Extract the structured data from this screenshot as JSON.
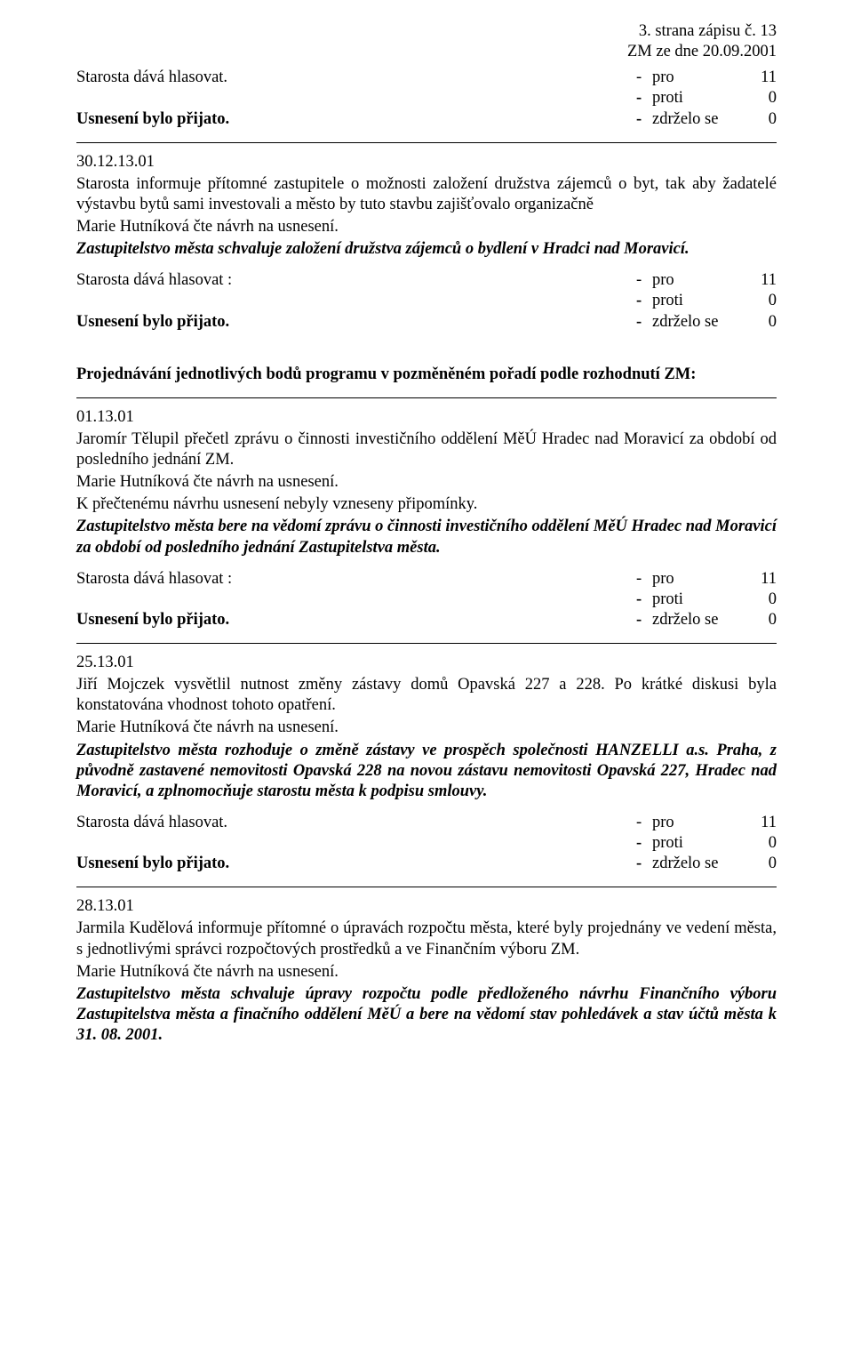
{
  "header": {
    "page_line": "3. strana zápisu č. 13",
    "date_line": "ZM  ze dne 20.09.2001"
  },
  "vote_labels": {
    "pro": "pro",
    "proti": "proti",
    "zdrzelo": "zdrželo se"
  },
  "section1": {
    "left_first": "Starosta dává hlasovat.",
    "pro": "11",
    "proti": "0",
    "zdrzelo": "0",
    "accepted": "Usnesení bylo přijato."
  },
  "section2": {
    "num": "30.12.13.01",
    "body": "Starosta informuje přítomné zastupitele o možnosti založení družstva zájemců o byt, tak aby žadatelé výstavbu bytů sami investovali a město by tuto stavbu zajišťovalo organizačně",
    "read": "Marie Hutníková čte návrh na usnesení.",
    "resolution": "Zastupitelstvo města schvaluje založení družstva zájemců o bydlení v Hradci nad Moravicí.",
    "left_first": "Starosta dává hlasovat :",
    "pro": "11",
    "proti": "0",
    "zdrzelo": "0",
    "accepted": "Usnesení bylo přijato."
  },
  "heading_main": "Projednávání jednotlivých bodů programu v pozměněném pořadí podle rozhodnutí ZM:",
  "section3": {
    "num": "01.13.01",
    "body": "Jaromír Tělupil přečetl zprávu o činnosti investičního oddělení MěÚ Hradec nad Moravicí  za období  od  posledního jednání ZM.",
    "read": "Marie Hutníková čte návrh na usnesení.",
    "noobj": "K přečtenému návrhu usnesení nebyly vzneseny připomínky.",
    "resolution": "Zastupitelstvo města bere na vědomí zprávu o činnosti investičního oddělení MěÚ Hradec nad Moravicí  za  období  od  posledního jednání Zastupitelstva města.",
    "left_first": "Starosta dává hlasovat :",
    "pro": "11",
    "proti": "0",
    "zdrzelo": "0",
    "accepted": "Usnesení bylo přijato."
  },
  "section4": {
    "num": "25.13.01",
    "body": "Jiří Mojczek vysvětlil nutnost změny zástavy domů Opavská 227 a 228. Po krátké diskusi byla konstatována vhodnost tohoto opatření.",
    "read": "Marie Hutníková čte návrh na usnesení.",
    "resolution": "Zastupitelstvo města rozhoduje o  změně zástavy  ve  prospěch společnosti HANZELLI a.s. Praha, z původně zastavené nemovitosti Opavská 228 na novou zástavu nemovitosti Opavská 227, Hradec nad Moravicí, a zplnomocňuje  starostu města k podpisu smlouvy.",
    "left_first": "Starosta dává hlasovat.",
    "pro": "11",
    "proti": "0",
    "zdrzelo": "0",
    "accepted": "Usnesení bylo přijato."
  },
  "section5": {
    "num": "28.13.01",
    "body": "Jarmila Kudělová informuje přítomné o úpravách rozpočtu města, které byly projednány ve vedení města, s jednotlivými správci rozpočtových prostředků a ve Finančním výboru ZM.",
    "read": "Marie  Hutníková čte návrh na usnesení.",
    "resolution": "Zastupitelstvo města schvaluje   úpravy rozpočtu podle předloženého návrhu Finančního  výboru Zastupitelstva města a finačního oddělení MěÚ a  bere  na  vědomí stav pohledávek a stav účtů  města k 31.  08.  2001."
  }
}
